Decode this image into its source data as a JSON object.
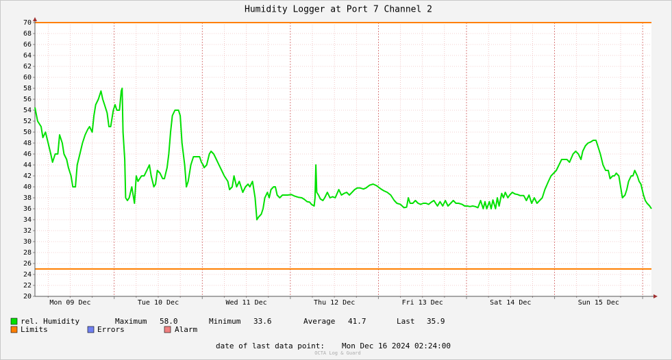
{
  "chart_data": {
    "type": "line",
    "title": "Humidity Logger at Port 7 Channel 2",
    "x": [
      9.1,
      9.13,
      9.17,
      9.19,
      9.22,
      9.25,
      9.28,
      9.3,
      9.33,
      9.36,
      9.38,
      9.41,
      9.43,
      9.46,
      9.48,
      9.51,
      9.53,
      9.56,
      9.58,
      9.61,
      9.64,
      9.67,
      9.7,
      9.72,
      9.75,
      9.77,
      9.79,
      9.82,
      9.85,
      9.87,
      9.89,
      9.92,
      9.94,
      9.96,
      9.99,
      10.01,
      10.03,
      10.06,
      10.08,
      10.09,
      10.1,
      10.12,
      10.13,
      10.15,
      10.17,
      10.2,
      10.23,
      10.25,
      10.27,
      10.31,
      10.34,
      10.37,
      10.4,
      10.42,
      10.45,
      10.47,
      10.49,
      10.52,
      10.55,
      10.57,
      10.6,
      10.62,
      10.64,
      10.66,
      10.69,
      10.73,
      10.75,
      10.77,
      10.8,
      10.82,
      10.84,
      10.87,
      10.9,
      10.94,
      10.97,
      10.99,
      11.01,
      11.02,
      11.05,
      11.08,
      11.1,
      11.13,
      11.16,
      11.19,
      11.22,
      11.25,
      11.29,
      11.31,
      11.34,
      11.36,
      11.39,
      11.42,
      11.44,
      11.46,
      11.49,
      11.52,
      11.54,
      11.57,
      11.58,
      11.6,
      11.61,
      11.62,
      11.64,
      11.67,
      11.69,
      11.71,
      11.74,
      11.76,
      11.78,
      11.81,
      11.83,
      11.85,
      11.88,
      11.91,
      11.94,
      11.97,
      12.01,
      12.05,
      12.09,
      12.13,
      12.16,
      12.19,
      12.22,
      12.24,
      12.27,
      12.28,
      12.29,
      12.3,
      12.32,
      12.34,
      12.37,
      12.39,
      12.42,
      12.45,
      12.48,
      12.51,
      12.55,
      12.58,
      12.61,
      12.64,
      12.67,
      12.7,
      12.73,
      12.76,
      12.79,
      12.83,
      12.86,
      12.9,
      12.94,
      12.98,
      13.02,
      13.06,
      13.1,
      13.14,
      13.18,
      13.21,
      13.25,
      13.29,
      13.32,
      13.34,
      13.36,
      13.39,
      13.42,
      13.45,
      13.48,
      13.51,
      13.54,
      13.57,
      13.6,
      13.63,
      13.67,
      13.7,
      13.73,
      13.76,
      13.79,
      13.82,
      13.85,
      13.88,
      13.91,
      13.95,
      13.98,
      14.01,
      14.04,
      14.07,
      14.1,
      14.13,
      14.16,
      14.19,
      14.21,
      14.23,
      14.26,
      14.28,
      14.3,
      14.33,
      14.35,
      14.37,
      14.4,
      14.42,
      14.44,
      14.47,
      14.49,
      14.52,
      14.55,
      14.58,
      14.61,
      14.65,
      14.68,
      14.71,
      14.74,
      14.77,
      14.8,
      14.83,
      14.86,
      14.89,
      14.93,
      14.96,
      14.99,
      15.02,
      15.05,
      15.08,
      15.11,
      15.14,
      15.17,
      15.21,
      15.24,
      15.27,
      15.3,
      15.32,
      15.35,
      15.38,
      15.41,
      15.44,
      15.47,
      15.49,
      15.52,
      15.55,
      15.58,
      15.61,
      15.63,
      15.66,
      15.68,
      15.7,
      15.73,
      15.75,
      15.77,
      15.8,
      15.82,
      15.84,
      15.87,
      15.89,
      15.91,
      15.94,
      15.96,
      15.98,
      16.01,
      16.03,
      16.05,
      16.08,
      16.1
    ],
    "series": [
      {
        "name": "rel. Humidity",
        "color": "#00e000",
        "values": [
          54.5,
          52,
          51,
          49,
          50,
          48,
          46,
          44.5,
          46,
          46,
          49.5,
          48,
          46,
          45,
          43.5,
          42,
          40,
          40,
          44,
          46,
          48,
          49.5,
          50.5,
          51,
          50,
          53,
          55,
          56,
          57.5,
          56,
          55,
          53.5,
          51,
          51,
          54,
          55,
          54,
          54,
          57.5,
          58,
          50,
          45,
          38,
          37.5,
          38,
          40,
          37,
          42,
          41,
          42,
          42,
          43,
          44,
          42,
          40,
          40.5,
          43,
          42.5,
          41.5,
          41.5,
          43.5,
          46,
          50,
          53,
          54,
          54,
          53,
          48,
          44,
          40,
          41,
          44,
          45.5,
          45.5,
          45.5,
          44.5,
          44,
          43.5,
          44,
          46,
          46.5,
          46,
          45,
          44,
          43,
          42,
          41,
          39.5,
          40,
          42,
          40,
          41,
          40,
          39,
          40,
          40.5,
          40,
          41,
          40,
          38,
          36,
          34,
          34.5,
          35,
          36,
          38,
          39,
          38,
          39.5,
          40,
          40,
          38.5,
          38,
          38.5,
          38.5,
          38.5,
          38.6,
          38.3,
          38.1,
          38,
          37.7,
          37.3,
          37.2,
          36.8,
          36.5,
          38,
          44,
          39,
          38.5,
          37.8,
          37.5,
          38,
          39,
          38,
          38.2,
          38,
          39.5,
          38.5,
          38.8,
          39,
          38.5,
          39,
          39.5,
          39.8,
          39.8,
          39.6,
          39.8,
          40.3,
          40.5,
          40.2,
          39.7,
          39.3,
          39,
          38.5,
          37.5,
          37,
          36.8,
          36.2,
          36.3,
          38,
          37,
          37,
          37.5,
          37,
          36.8,
          37,
          37,
          36.8,
          37.2,
          37.5,
          36.5,
          37.3,
          36.5,
          37.5,
          36.5,
          37,
          37.5,
          37,
          37,
          36.8,
          36.5,
          36.5,
          36.4,
          36.5,
          36.4,
          36.2,
          37.5,
          36,
          37.3,
          36,
          37.3,
          36,
          37.6,
          36,
          38,
          36.5,
          38.8,
          38,
          39,
          38,
          38.5,
          39,
          38.7,
          38.6,
          38.4,
          38.4,
          37.5,
          38.5,
          37,
          38,
          37,
          37.5,
          38,
          39.5,
          41,
          42,
          42.5,
          43,
          44,
          45,
          45,
          45,
          44.5,
          46,
          46.5,
          46,
          45,
          46.5,
          47.5,
          48,
          48.2,
          48.5,
          48.5,
          47.5,
          46,
          44,
          43,
          43,
          41.5,
          42,
          42,
          42.5,
          42,
          40,
          38,
          38.5,
          39.5,
          41,
          42,
          42,
          43,
          42,
          41,
          40.5,
          38.5,
          37.5,
          37,
          36.5,
          36
        ]
      }
    ],
    "limits": {
      "name": "Limits",
      "color": "#ff7f00",
      "values": [
        70,
        25
      ]
    },
    "legend_extra": [
      {
        "name": "Errors",
        "color": "#7080f0"
      },
      {
        "name": "Alarm",
        "color": "#f08080"
      }
    ],
    "stats": [
      {
        "name": "Maximum",
        "value": 58.0,
        "label": "58.0"
      },
      {
        "name": "Minimum",
        "value": 33.6,
        "label": "33.6"
      },
      {
        "name": "Average",
        "value": 41.7,
        "label": "41.7"
      },
      {
        "name": "Last",
        "value": 35.9,
        "label": "35.9"
      }
    ],
    "xlim": [
      9.1,
      16.1
    ],
    "xticks": [
      {
        "value": 9.5,
        "label": "Mon 09 Dec"
      },
      {
        "value": 10.5,
        "label": "Tue 10 Dec"
      },
      {
        "value": 11.5,
        "label": "Wed 11 Dec"
      },
      {
        "value": 12.5,
        "label": "Thu 12 Dec"
      },
      {
        "value": 13.5,
        "label": "Fri 13 Dec"
      },
      {
        "value": 14.5,
        "label": "Sat 14 Dec"
      },
      {
        "value": 15.5,
        "label": "Sun 15 Dec"
      }
    ],
    "xgrid": [
      9.25,
      9.5,
      9.75,
      10,
      10.25,
      10.5,
      10.75,
      11,
      11.25,
      11.5,
      11.75,
      12,
      12.25,
      12.5,
      12.75,
      13,
      13.25,
      13.5,
      13.75,
      14,
      14.25,
      14.5,
      14.75,
      15,
      15.25,
      15.5,
      15.75,
      16
    ],
    "ylim": [
      20,
      70
    ],
    "yticks": [
      20,
      22,
      24,
      26,
      28,
      30,
      32,
      34,
      36,
      38,
      40,
      42,
      44,
      46,
      48,
      50,
      52,
      54,
      56,
      58,
      60,
      62,
      64,
      66,
      68,
      70
    ],
    "grid": true,
    "footer_label": "date of last data point:",
    "footer_value": "Mon Dec 16 2024 02:24:00",
    "watermark": "OCTA Log & Guard"
  }
}
